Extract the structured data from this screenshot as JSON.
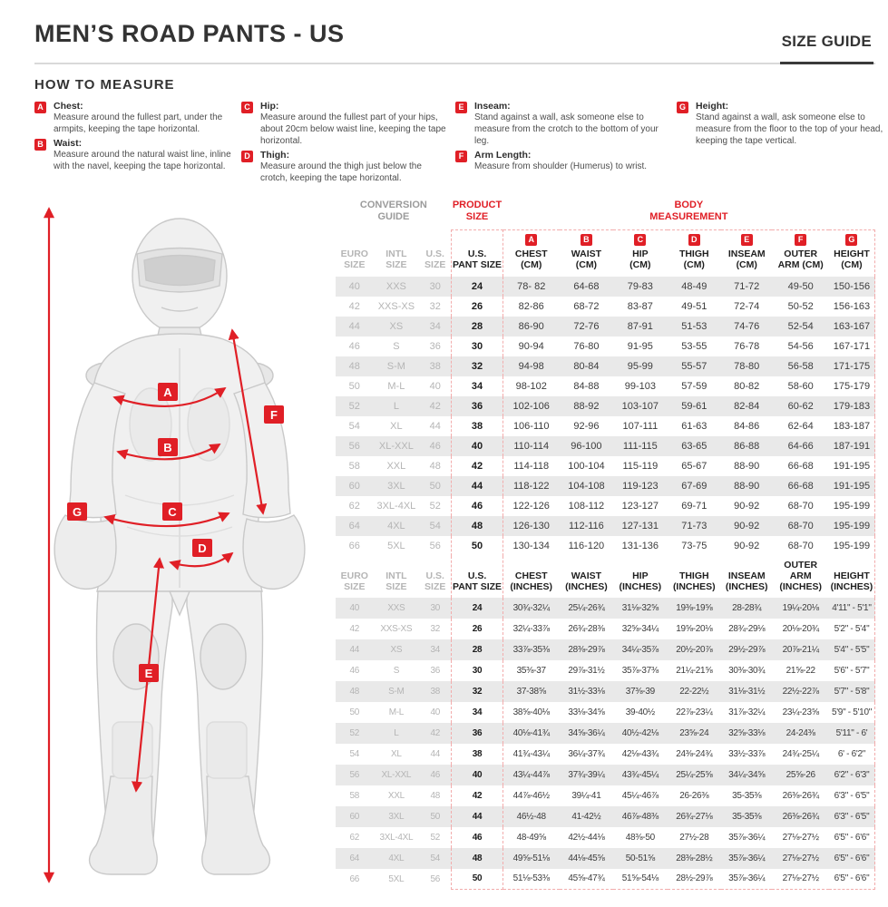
{
  "page": {
    "title": "MEN’S ROAD PANTS - US",
    "size_guide_label": "SIZE GUIDE"
  },
  "colors": {
    "accent_red": "#e01f26",
    "row_shade": "#e9e9e9",
    "muted_gray": "#b5b5b5"
  },
  "how_to_measure": {
    "heading": "HOW TO MEASURE",
    "items": [
      {
        "letter": "A",
        "name": "Chest:",
        "text": "Measure around the fullest part, under the armpits, keeping the tape horizontal."
      },
      {
        "letter": "B",
        "name": "Waist:",
        "text": "Measure around the natural waist line, inline with the navel, keeping the tape horizontal."
      },
      {
        "letter": "C",
        "name": "Hip:",
        "text": "Measure around the fullest part of your hips, about 20cm below waist line, keeping the tape horizontal."
      },
      {
        "letter": "D",
        "name": "Thigh:",
        "text": "Measure around the thigh just below the crotch, keeping the tape horizontal."
      },
      {
        "letter": "E",
        "name": "Inseam:",
        "text": "Stand against a wall, ask someone else to measure from the crotch to the bottom of your leg."
      },
      {
        "letter": "F",
        "name": "Arm Length:",
        "text": "Measure from shoulder (Humerus) to wrist."
      },
      {
        "letter": "G",
        "name": "Height:",
        "text": "Stand against a wall, ask someone else to measure from the floor to the top of your head, keeping the tape vertical."
      }
    ]
  },
  "figure": {
    "badges": [
      "A",
      "B",
      "C",
      "D",
      "E",
      "F",
      "G"
    ]
  },
  "size_table": {
    "group_headers": {
      "conversion": {
        "line1": "CONVERSION",
        "line2": "GUIDE"
      },
      "product": {
        "line1": "PRODUCT",
        "line2": "SIZE"
      },
      "body": {
        "line1": "BODY",
        "line2": "MEASUREMENT"
      }
    },
    "cm_columns": [
      {
        "line1": "EURO",
        "line2": "SIZE",
        "muted": true
      },
      {
        "line1": "INTL",
        "line2": "SIZE",
        "muted": true
      },
      {
        "line1": "U.S.",
        "line2": "SIZE",
        "muted": true
      },
      {
        "line1": "U.S.",
        "line2": "PANT SIZE"
      },
      {
        "letter": "A",
        "line1": "CHEST",
        "line2": "(CM)"
      },
      {
        "letter": "B",
        "line1": "WAIST",
        "line2": "(CM)"
      },
      {
        "letter": "C",
        "line1": "HIP",
        "line2": "(CM)"
      },
      {
        "letter": "D",
        "line1": "THIGH",
        "line2": "(CM)"
      },
      {
        "letter": "E",
        "line1": "INSEAM",
        "line2": "(CM)"
      },
      {
        "letter": "F",
        "line1": "OUTER",
        "line2": "ARM (CM)"
      },
      {
        "letter": "G",
        "line1": "HEIGHT",
        "line2": "(CM)"
      }
    ],
    "cm_rows": [
      [
        "40",
        "XXS",
        "30",
        "24",
        "78- 82",
        "64-68",
        "79-83",
        "48-49",
        "71-72",
        "49-50",
        "150-156"
      ],
      [
        "42",
        "XXS-XS",
        "32",
        "26",
        "82-86",
        "68-72",
        "83-87",
        "49-51",
        "72-74",
        "50-52",
        "156-163"
      ],
      [
        "44",
        "XS",
        "34",
        "28",
        "86-90",
        "72-76",
        "87-91",
        "51-53",
        "74-76",
        "52-54",
        "163-167"
      ],
      [
        "46",
        "S",
        "36",
        "30",
        "90-94",
        "76-80",
        "91-95",
        "53-55",
        "76-78",
        "54-56",
        "167-171"
      ],
      [
        "48",
        "S-M",
        "38",
        "32",
        "94-98",
        "80-84",
        "95-99",
        "55-57",
        "78-80",
        "56-58",
        "171-175"
      ],
      [
        "50",
        "M-L",
        "40",
        "34",
        "98-102",
        "84-88",
        "99-103",
        "57-59",
        "80-82",
        "58-60",
        "175-179"
      ],
      [
        "52",
        "L",
        "42",
        "36",
        "102-106",
        "88-92",
        "103-107",
        "59-61",
        "82-84",
        "60-62",
        "179-183"
      ],
      [
        "54",
        "XL",
        "44",
        "38",
        "106-110",
        "92-96",
        "107-111",
        "61-63",
        "84-86",
        "62-64",
        "183-187"
      ],
      [
        "56",
        "XL-XXL",
        "46",
        "40",
        "110-114",
        "96-100",
        "111-115",
        "63-65",
        "86-88",
        "64-66",
        "187-191"
      ],
      [
        "58",
        "XXL",
        "48",
        "42",
        "114-118",
        "100-104",
        "115-119",
        "65-67",
        "88-90",
        "66-68",
        "191-195"
      ],
      [
        "60",
        "3XL",
        "50",
        "44",
        "118-122",
        "104-108",
        "119-123",
        "67-69",
        "88-90",
        "66-68",
        "191-195"
      ],
      [
        "62",
        "3XL-4XL",
        "52",
        "46",
        "122-126",
        "108-112",
        "123-127",
        "69-71",
        "90-92",
        "68-70",
        "195-199"
      ],
      [
        "64",
        "4XL",
        "54",
        "48",
        "126-130",
        "112-116",
        "127-131",
        "71-73",
        "90-92",
        "68-70",
        "195-199"
      ],
      [
        "66",
        "5XL",
        "56",
        "50",
        "130-134",
        "116-120",
        "131-136",
        "73-75",
        "90-92",
        "68-70",
        "195-199"
      ]
    ],
    "inch_columns": [
      {
        "line1": "EURO",
        "line2": "SIZE",
        "muted": true
      },
      {
        "line1": "INTL",
        "line2": "SIZE",
        "muted": true
      },
      {
        "line1": "U.S.",
        "line2": "SIZE",
        "muted": true
      },
      {
        "line1": "U.S.",
        "line2": "PANT SIZE"
      },
      {
        "line1": "CHEST",
        "line2": "(INCHES)"
      },
      {
        "line1": "WAIST",
        "line2": "(INCHES)"
      },
      {
        "line1": "HIP",
        "line2": "(INCHES)"
      },
      {
        "line1": "THIGH",
        "line2": "(INCHES)"
      },
      {
        "line1": "INSEAM",
        "line2": "(INCHES)"
      },
      {
        "line1": "OUTER ARM",
        "line2": "(INCHES)"
      },
      {
        "line1": "HEIGHT",
        "line2": "(INCHES)"
      }
    ],
    "inch_rows": [
      [
        "40",
        "XXS",
        "30",
        "24",
        "30¾-32¼",
        "25¼-26¾",
        "31⅛-32⅝",
        "19⅜-19⅝",
        "28-28¾",
        "19¼-20⅛",
        "4'11\" - 5'1\""
      ],
      [
        "42",
        "XXS-XS",
        "32",
        "26",
        "32¼-33⅞",
        "26¾-28⅜",
        "32⅝-34¼",
        "19⅝-20⅛",
        "28¾-29⅛",
        "20⅛-20¾",
        "5'2\" - 5'4\""
      ],
      [
        "44",
        "XS",
        "34",
        "28",
        "33⅞-35⅜",
        "28⅜-29⅞",
        "34¼-35⅞",
        "20½-20⅞",
        "29½-29⅞",
        "20⅞-21¼",
        "5'4\" - 5'5\""
      ],
      [
        "46",
        "S",
        "36",
        "30",
        "35⅜-37",
        "29⅞-31½",
        "35⅞-37⅜",
        "21¼-21⅝",
        "30⅜-30¾",
        "21⅝-22",
        "5'6\" - 5'7\""
      ],
      [
        "48",
        "S-M",
        "38",
        "32",
        "37-38⅝",
        "31½-33⅛",
        "37⅜-39",
        "22-22½",
        "31⅛-31½",
        "22½-22⅞",
        "5'7\" - 5'8\""
      ],
      [
        "50",
        "M-L",
        "40",
        "34",
        "38⅝-40⅛",
        "33⅛-34⅝",
        "39-40½",
        "22⅞-23¼",
        "31⅞-32¼",
        "23¼-23⅝",
        "5'9\" - 5'10\""
      ],
      [
        "52",
        "L",
        "42",
        "36",
        "40⅛-41¾",
        "34⅝-36¼",
        "40½-42⅛",
        "23⅝-24",
        "32⅝-33⅛",
        "24-24⅜",
        "5'11\" - 6'"
      ],
      [
        "54",
        "XL",
        "44",
        "38",
        "41¾-43¼",
        "36¼-37¾",
        "42⅛-43¾",
        "24⅜-24¾",
        "33½-33⅞",
        "24¾-25¼",
        "6' - 6'2\""
      ],
      [
        "56",
        "XL-XXL",
        "46",
        "40",
        "43¼-44⅞",
        "37¾-39¼",
        "43¾-45¼",
        "25¼-25⅝",
        "34¼-34⅝",
        "25⅝-26",
        "6'2\" - 6'3\""
      ],
      [
        "58",
        "XXL",
        "48",
        "42",
        "44⅞-46½",
        "39¼-41",
        "45¼-46⅞",
        "26-26⅜",
        "35-35⅜",
        "26⅜-26¾",
        "6'3\" - 6'5\""
      ],
      [
        "60",
        "3XL",
        "50",
        "44",
        "46½-48",
        "41-42½",
        "46⅞-48⅜",
        "26¾-27⅛",
        "35-35⅜",
        "26⅜-26¾",
        "6'3\" - 6'5\""
      ],
      [
        "62",
        "3XL-4XL",
        "52",
        "46",
        "48-49⅝",
        "42½-44⅛",
        "48⅜-50",
        "27½-28",
        "35⅞-36¼",
        "27⅛-27½",
        "6'5\" - 6'6\""
      ],
      [
        "64",
        "4XL",
        "54",
        "48",
        "49⅝-51⅛",
        "44⅛-45⅝",
        "50-51⅝",
        "28⅜-28½",
        "35⅞-36¼",
        "27⅛-27½",
        "6'5\" - 6'6\""
      ],
      [
        "66",
        "5XL",
        "56",
        "50",
        "51⅛-53⅜",
        "45⅝-47¾",
        "51⅝-54⅛",
        "28½-29⅞",
        "35⅞-36¼",
        "27⅛-27½",
        "6'5\" - 6'6\""
      ]
    ]
  }
}
